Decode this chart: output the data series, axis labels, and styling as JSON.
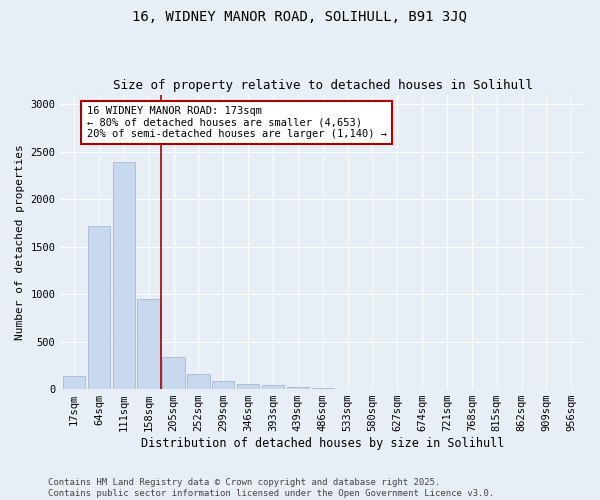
{
  "title1": "16, WIDNEY MANOR ROAD, SOLIHULL, B91 3JQ",
  "title2": "Size of property relative to detached houses in Solihull",
  "xlabel": "Distribution of detached houses by size in Solihull",
  "ylabel": "Number of detached properties",
  "categories": [
    "17sqm",
    "64sqm",
    "111sqm",
    "158sqm",
    "205sqm",
    "252sqm",
    "299sqm",
    "346sqm",
    "393sqm",
    "439sqm",
    "486sqm",
    "533sqm",
    "580sqm",
    "627sqm",
    "674sqm",
    "721sqm",
    "768sqm",
    "815sqm",
    "862sqm",
    "909sqm",
    "956sqm"
  ],
  "values": [
    135,
    1720,
    2390,
    950,
    340,
    160,
    80,
    50,
    40,
    25,
    10,
    0,
    0,
    0,
    0,
    0,
    0,
    0,
    0,
    0,
    0
  ],
  "bar_color": "#c8d8ee",
  "bar_edgecolor": "#9ab0cc",
  "vline_x": 3.5,
  "vline_color": "#aa0000",
  "annotation_text": "16 WIDNEY MANOR ROAD: 173sqm\n← 80% of detached houses are smaller (4,653)\n20% of semi-detached houses are larger (1,140) →",
  "annotation_box_facecolor": "#ffffff",
  "annotation_box_edgecolor": "#aa0000",
  "ylim": [
    0,
    3100
  ],
  "yticks": [
    0,
    500,
    1000,
    1500,
    2000,
    2500,
    3000
  ],
  "bg_color": "#e8eef5",
  "grid_color": "#ffffff",
  "footer": "Contains HM Land Registry data © Crown copyright and database right 2025.\nContains public sector information licensed under the Open Government Licence v3.0.",
  "title1_fontsize": 10,
  "title2_fontsize": 9,
  "xlabel_fontsize": 8.5,
  "ylabel_fontsize": 8,
  "tick_fontsize": 7.5,
  "annotation_fontsize": 7.5,
  "footer_fontsize": 6.5
}
